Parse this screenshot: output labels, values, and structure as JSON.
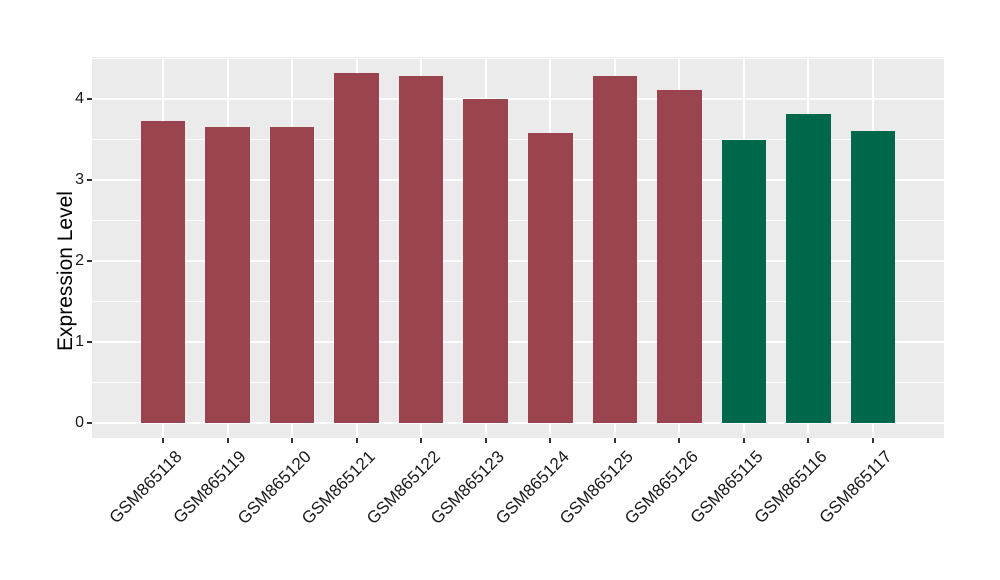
{
  "chart_data": {
    "type": "bar",
    "title": "",
    "ylabel": "Expression Level",
    "xlabel": "",
    "categories": [
      "GSM865118",
      "GSM865119",
      "GSM865120",
      "GSM865121",
      "GSM865122",
      "GSM865123",
      "GSM865124",
      "GSM865125",
      "GSM865126",
      "GSM865115",
      "GSM865116",
      "GSM865117"
    ],
    "values": [
      3.73,
      3.66,
      3.66,
      4.32,
      4.29,
      4.0,
      3.58,
      4.29,
      4.11,
      3.49,
      3.81,
      3.6
    ],
    "bar_colors": [
      "#9A4450",
      "#9A4450",
      "#9A4450",
      "#9A4450",
      "#9A4450",
      "#9A4450",
      "#9A4450",
      "#9A4450",
      "#9A4450",
      "#00684A",
      "#00684A",
      "#00684A"
    ],
    "group_colors": {
      "maroon": "#9A4450",
      "green": "#00684A"
    },
    "y_tick_labels": [
      "0",
      "1",
      "2",
      "3",
      "4"
    ],
    "y_tick_values": [
      0,
      1,
      2,
      3,
      4
    ],
    "y_minor_values": [
      0.5,
      1.5,
      2.5,
      3.5,
      4.5
    ],
    "ylim": [
      -0.19,
      4.52
    ],
    "x_edge_pad_units": 0.6,
    "bar_width_units": 0.69,
    "grid": "white major+minor horizontal lines, white vertical lines at category centers",
    "legend_position": "none",
    "panel_bg": "#EBEBEB",
    "grid_color": "#FFFFFF",
    "tick_color": "#333333",
    "text_color": "#1a1a1a"
  }
}
